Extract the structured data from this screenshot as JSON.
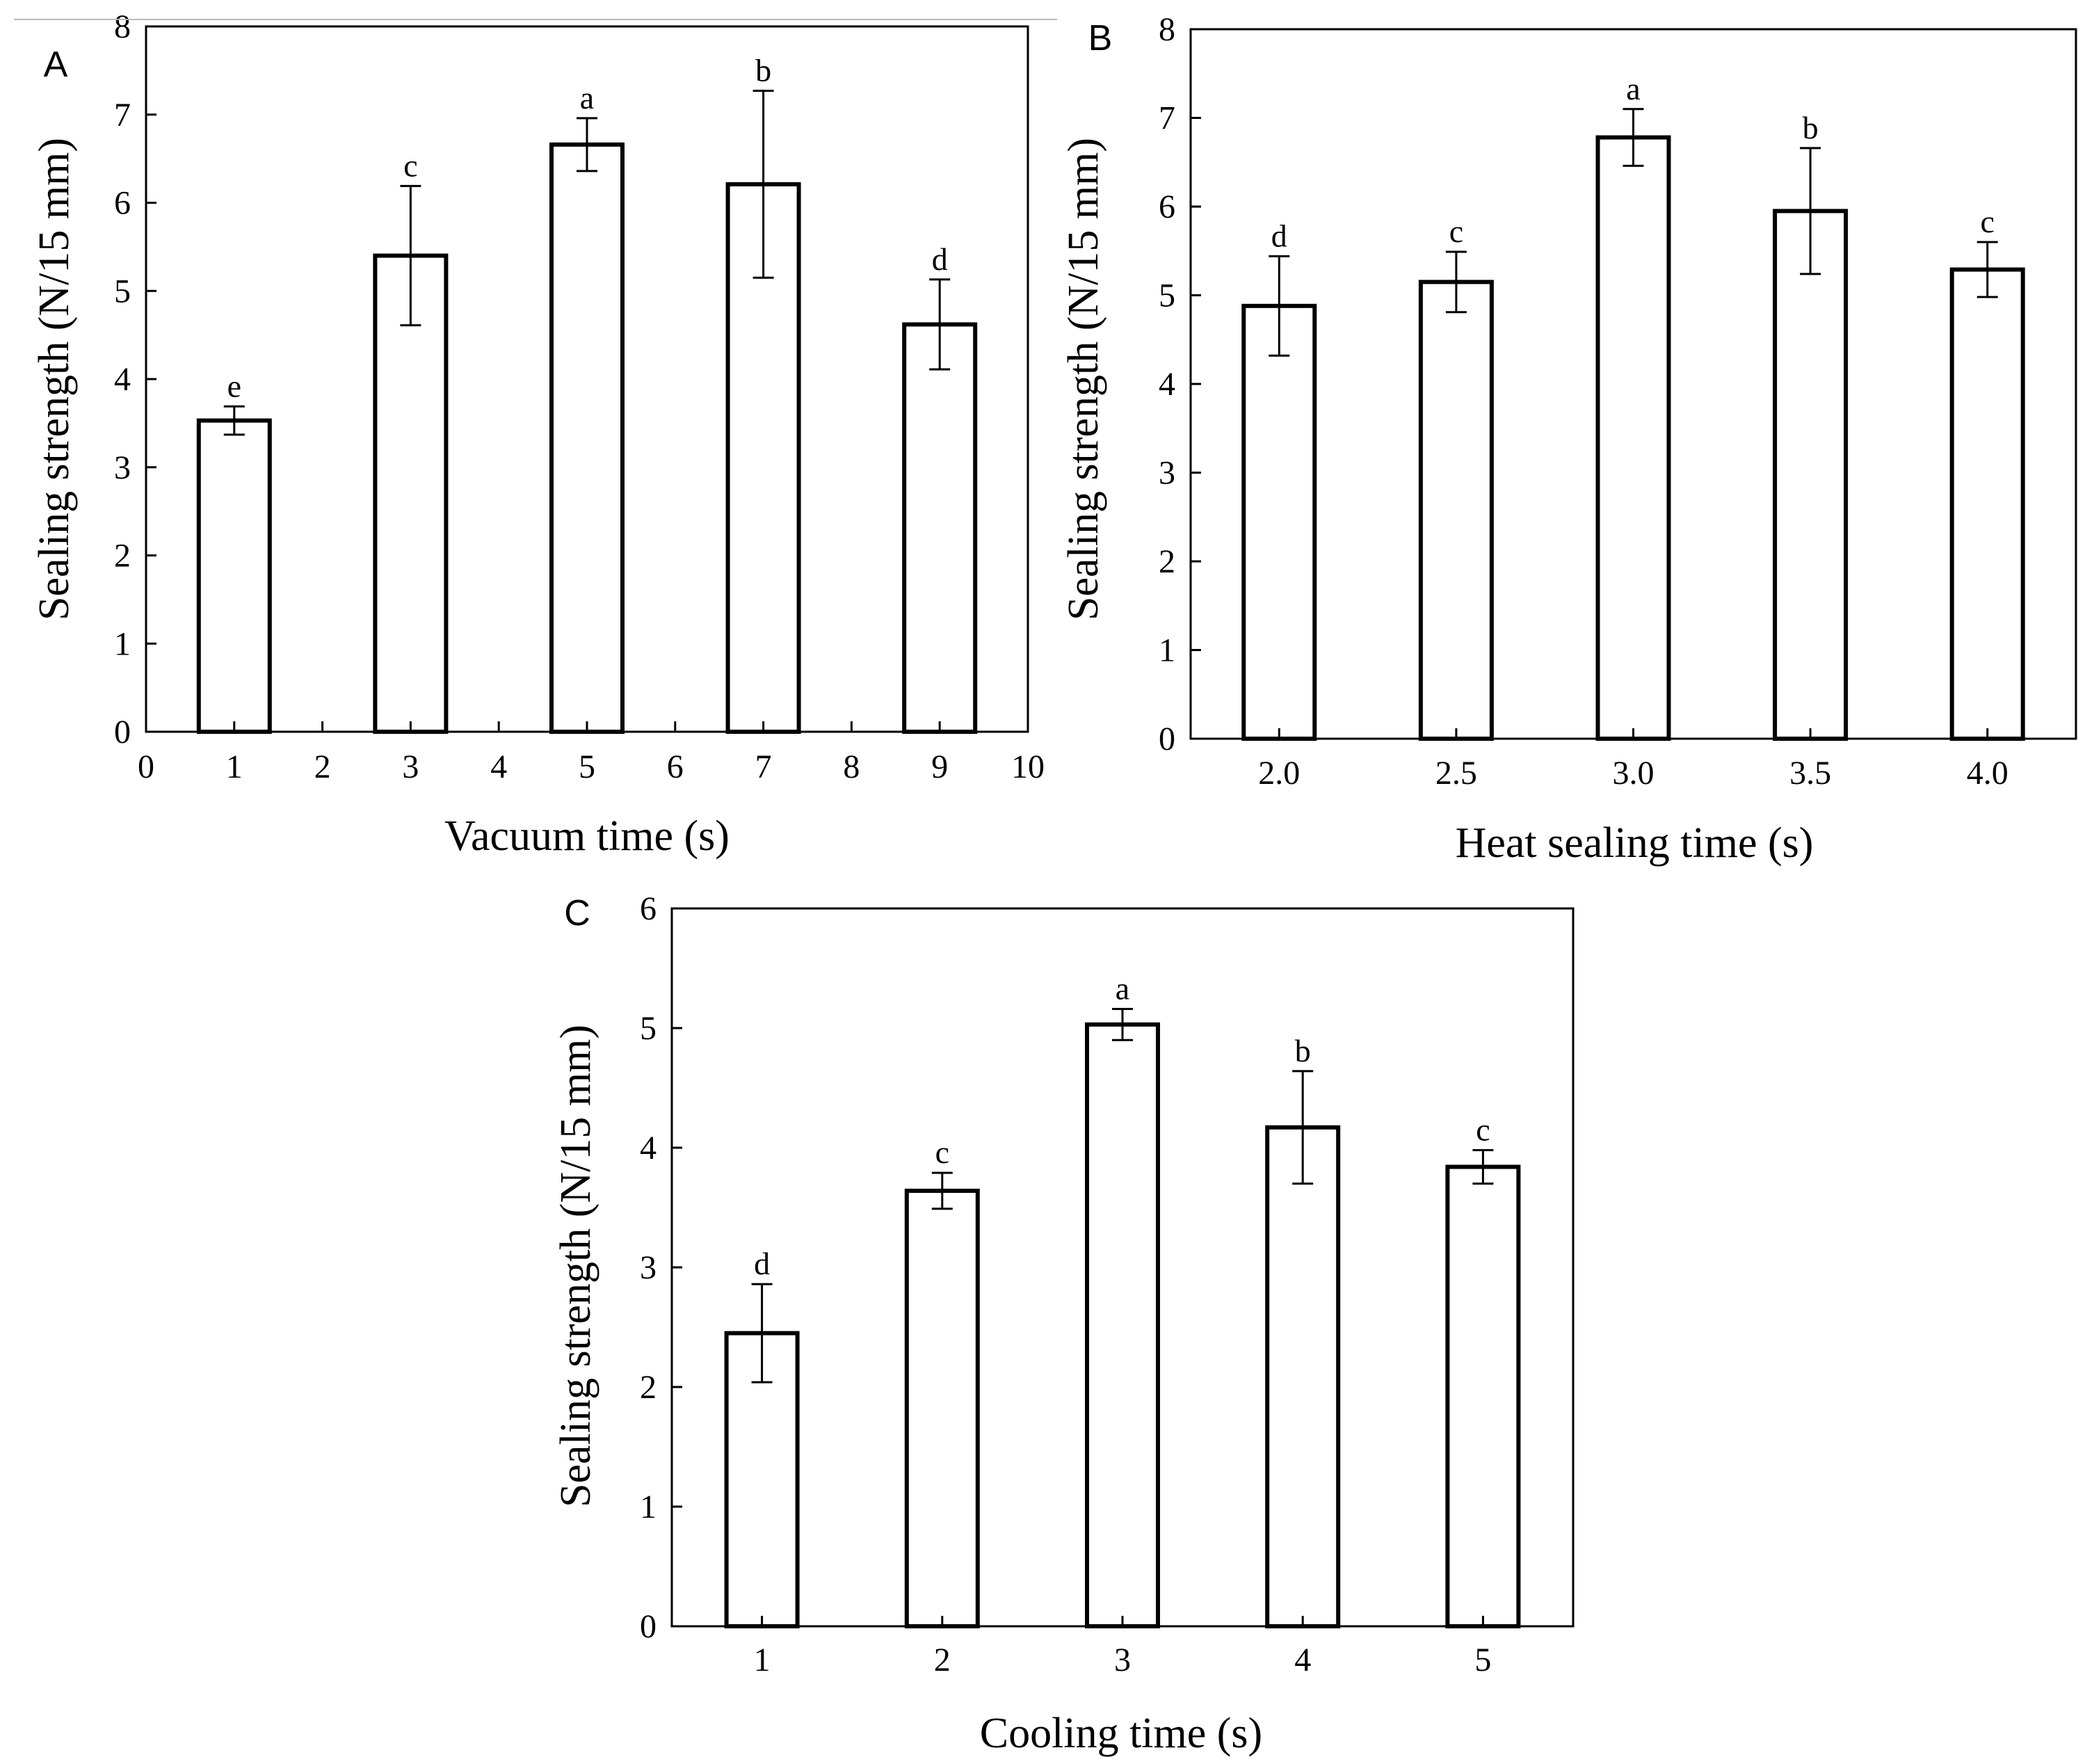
{
  "figure": {
    "panels": [
      "A",
      "B",
      "C"
    ]
  },
  "colors": {
    "axis": "#000000",
    "bar_fill": "#ffffff",
    "bar_stroke": "#000000",
    "background": "#ffffff"
  },
  "chart_data": [
    {
      "type": "bar",
      "panel_label": "A",
      "title": "",
      "xlabel": "Vacuum time (s)",
      "ylabel": "Sealing strength (N/15 mm)",
      "x_is_numeric": true,
      "xlim": [
        0,
        10
      ],
      "ylim": [
        0,
        8
      ],
      "x_ticks": [
        0,
        1,
        2,
        3,
        4,
        5,
        6,
        7,
        8,
        9,
        10
      ],
      "x_tick_labels": [
        "0",
        "1",
        "2",
        "3",
        "4",
        "5",
        "6",
        "7",
        "8",
        "9",
        "10"
      ],
      "y_ticks": [
        0,
        1,
        2,
        3,
        4,
        5,
        6,
        7,
        8
      ],
      "y_tick_labels": [
        "0",
        "1",
        "2",
        "3",
        "4",
        "5",
        "6",
        "7",
        "8"
      ],
      "categories": [
        1,
        3,
        5,
        7,
        9
      ],
      "values": [
        3.53,
        5.4,
        6.66,
        6.21,
        4.62
      ],
      "errors": [
        0.16,
        0.79,
        0.3,
        1.06,
        0.51
      ],
      "letters": [
        "e",
        "c",
        "a",
        "b",
        "d"
      ],
      "grid": false
    },
    {
      "type": "bar",
      "panel_label": "B",
      "title": "",
      "xlabel": "Heat sealing time (s)",
      "ylabel": "Sealing strength (N/15 mm)",
      "x_is_numeric": false,
      "ylim": [
        0,
        8
      ],
      "x_tick_labels": [
        "2.0",
        "2.5",
        "3.0",
        "3.5",
        "4.0"
      ],
      "y_ticks": [
        0,
        1,
        2,
        3,
        4,
        5,
        6,
        7,
        8
      ],
      "y_tick_labels": [
        "0",
        "1",
        "2",
        "3",
        "4",
        "5",
        "6",
        "7",
        "8"
      ],
      "categories": [
        "2.0",
        "2.5",
        "3.0",
        "3.5",
        "4.0"
      ],
      "values": [
        4.88,
        5.15,
        6.78,
        5.95,
        5.29
      ],
      "errors": [
        0.56,
        0.34,
        0.32,
        0.71,
        0.31
      ],
      "letters": [
        "d",
        "c",
        "a",
        "b",
        "c"
      ],
      "grid": false
    },
    {
      "type": "bar",
      "panel_label": "C",
      "title": "",
      "xlabel": "Cooling time (s)",
      "ylabel": "Sealing strength (N/15 mm)",
      "x_is_numeric": false,
      "ylim": [
        0,
        6
      ],
      "x_tick_labels": [
        "1",
        "2",
        "3",
        "4",
        "5"
      ],
      "y_ticks": [
        0,
        1,
        2,
        3,
        4,
        5,
        6
      ],
      "y_tick_labels": [
        "0",
        "1",
        "2",
        "3",
        "4",
        "5",
        "6"
      ],
      "categories": [
        "1",
        "2",
        "3",
        "4",
        "5"
      ],
      "values": [
        2.45,
        3.64,
        5.03,
        4.17,
        3.84
      ],
      "errors": [
        0.41,
        0.15,
        0.13,
        0.47,
        0.14
      ],
      "letters": [
        "d",
        "c",
        "a",
        "b",
        "c"
      ],
      "grid": false
    }
  ]
}
